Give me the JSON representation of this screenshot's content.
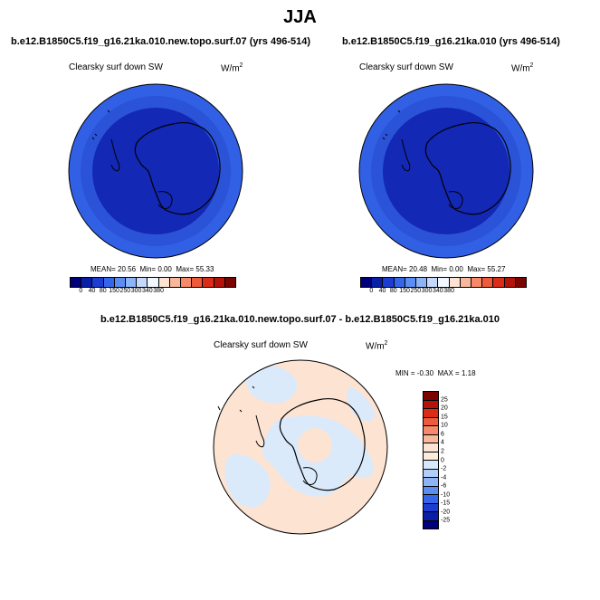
{
  "main_title": "JJA",
  "panels": {
    "top_left": {
      "case_title": "b.e12.B1850C5.f19_g16.21ka.010.new.topo.surf.07 (yrs 496-514)",
      "variable": "Clearsky surf down SW",
      "units_base": "W/m",
      "units_exp": "2",
      "stats": {
        "mean_label": "MEAN=",
        "mean": "20.56",
        "min_label": "Min=",
        "min": "0.00",
        "max_label": "Max=",
        "max": "55.33"
      }
    },
    "top_right": {
      "case_title": "b.e12.B1850C5.f19_g16.21ka.010 (yrs 496-514)",
      "variable": "Clearsky surf down SW",
      "units_base": "W/m",
      "units_exp": "2",
      "stats": {
        "mean_label": "MEAN=",
        "mean": "20.48",
        "min_label": "Min=",
        "min": "0.00",
        "max_label": "Max=",
        "max": "55.27"
      }
    },
    "bottom": {
      "case_title": "b.e12.B1850C5.f19_g16.21ka.010.new.topo.surf.07 - b.e12.B1850C5.f19_g16.21ka.010",
      "variable": "Clearsky surf down SW",
      "units_base": "W/m",
      "units_exp": "2",
      "stats": {
        "min_label": "MIN =",
        "min": "-0.30",
        "max_label": "MAX =",
        "max": "1.18"
      }
    }
  },
  "abs_colorbar": {
    "ticks": [
      "0",
      "40",
      "80",
      "150",
      "250",
      "300",
      "340",
      "380"
    ],
    "colors": [
      "#00007a",
      "#0a1fa8",
      "#1c3cd2",
      "#3566ea",
      "#5b8df2",
      "#8db4f7",
      "#c4d9fb",
      "#f2f6ff",
      "#fde3d3",
      "#f9b79b",
      "#f5896a",
      "#ef5a3b",
      "#db2c17",
      "#b5120a",
      "#7c0400"
    ]
  },
  "diff_colorbar": {
    "ticks": [
      "25",
      "20",
      "15",
      "10",
      "6",
      "4",
      "2",
      "0",
      "-2",
      "-4",
      "-6",
      "-10",
      "-15",
      "-20",
      "-25"
    ],
    "colors": [
      "#7c0400",
      "#b5120a",
      "#db2c17",
      "#ef5a3b",
      "#f5896a",
      "#f9b79b",
      "#fde3d3",
      "#fdebdc",
      "#d6e8fb",
      "#b3cff8",
      "#8db4f7",
      "#5b8df2",
      "#3566ea",
      "#1c3cd2",
      "#0a1fa8",
      "#00007a"
    ]
  },
  "map_colors": {
    "outer_ring": "#3160e4",
    "inner_disk": "#1328b4",
    "diff_positive": "#fde3d1",
    "diff_negative": "#dbeafb"
  }
}
